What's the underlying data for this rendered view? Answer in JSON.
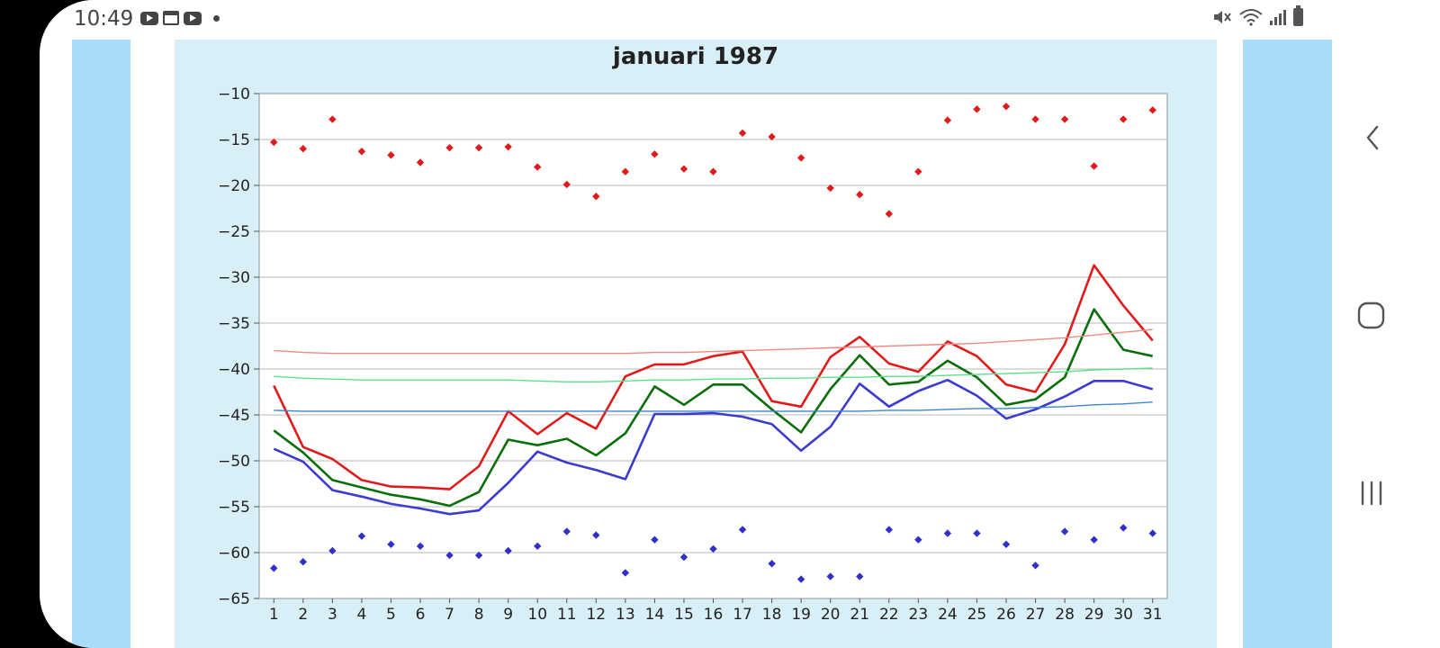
{
  "status_bar": {
    "time": "10:49"
  },
  "chart_data": {
    "type": "line",
    "title": "januari 1987",
    "xlabel": "",
    "ylabel": "",
    "x": [
      1,
      2,
      3,
      4,
      5,
      6,
      7,
      8,
      9,
      10,
      11,
      12,
      13,
      14,
      15,
      16,
      17,
      18,
      19,
      20,
      21,
      22,
      23,
      24,
      25,
      26,
      27,
      28,
      29,
      30,
      31
    ],
    "ylim": [
      -65,
      -10
    ],
    "yticks": [
      -10,
      -15,
      -20,
      -25,
      -30,
      -35,
      -40,
      -45,
      -50,
      -55,
      -60,
      -65
    ],
    "grid": true,
    "series": [
      {
        "kind": "line",
        "color": "#e01b1b",
        "width": 2.6,
        "values": [
          -41.8,
          -48.5,
          -49.8,
          -52.1,
          -52.8,
          -52.9,
          -53.1,
          -50.6,
          -44.6,
          -47.1,
          -44.8,
          -46.5,
          -40.8,
          -39.5,
          -39.5,
          -38.6,
          -38.1,
          -43.5,
          -44.1,
          -38.7,
          -36.5,
          -39.4,
          -40.3,
          -37.0,
          -38.6,
          -41.7,
          -42.5,
          -37.3,
          -28.7,
          -33.1,
          -36.9
        ]
      },
      {
        "kind": "line",
        "color": "#0a6e0a",
        "width": 2.6,
        "values": [
          -46.7,
          -49.1,
          -52.1,
          -52.9,
          -53.7,
          -54.2,
          -54.9,
          -53.4,
          -47.7,
          -48.3,
          -47.6,
          -49.4,
          -47.0,
          -41.9,
          -43.9,
          -41.7,
          -41.7,
          -44.4,
          -46.9,
          -42.2,
          -38.5,
          -41.7,
          -41.4,
          -39.1,
          -40.9,
          -43.9,
          -43.3,
          -40.9,
          -33.5,
          -37.9,
          -38.6
        ]
      },
      {
        "kind": "line",
        "color": "#3b3bd0",
        "width": 2.6,
        "values": [
          -48.7,
          -50.1,
          -53.2,
          -53.9,
          -54.7,
          -55.2,
          -55.8,
          -55.4,
          -52.4,
          -49.0,
          -50.2,
          -51.0,
          -52.0,
          -44.9,
          -44.9,
          -44.8,
          -45.2,
          -46.0,
          -48.9,
          -46.3,
          -41.6,
          -44.1,
          -42.4,
          -41.2,
          -42.9,
          -45.4,
          -44.4,
          -43.0,
          -41.3,
          -41.3,
          -42.2
        ]
      },
      {
        "kind": "line",
        "color": "#f08a85",
        "width": 1.4,
        "values": [
          -38.0,
          -38.2,
          -38.3,
          -38.3,
          -38.3,
          -38.3,
          -38.3,
          -38.3,
          -38.3,
          -38.3,
          -38.3,
          -38.3,
          -38.3,
          -38.2,
          -38.2,
          -38.1,
          -38.0,
          -37.9,
          -37.8,
          -37.7,
          -37.6,
          -37.5,
          -37.4,
          -37.3,
          -37.2,
          -37.0,
          -36.8,
          -36.6,
          -36.3,
          -36.0,
          -35.7
        ]
      },
      {
        "kind": "line",
        "color": "#5ee08a",
        "width": 1.4,
        "values": [
          -40.8,
          -41.0,
          -41.1,
          -41.2,
          -41.2,
          -41.2,
          -41.2,
          -41.2,
          -41.2,
          -41.3,
          -41.4,
          -41.4,
          -41.3,
          -41.2,
          -41.2,
          -41.1,
          -41.1,
          -41.0,
          -41.0,
          -40.9,
          -40.9,
          -40.8,
          -40.8,
          -40.7,
          -40.6,
          -40.5,
          -40.4,
          -40.3,
          -40.1,
          -40.0,
          -39.9
        ]
      },
      {
        "kind": "line",
        "color": "#3c84d4",
        "width": 1.4,
        "values": [
          -44.5,
          -44.6,
          -44.6,
          -44.6,
          -44.6,
          -44.6,
          -44.6,
          -44.6,
          -44.6,
          -44.6,
          -44.6,
          -44.6,
          -44.6,
          -44.6,
          -44.6,
          -44.6,
          -44.6,
          -44.6,
          -44.6,
          -44.6,
          -44.6,
          -44.5,
          -44.5,
          -44.4,
          -44.3,
          -44.3,
          -44.2,
          -44.1,
          -43.9,
          -43.8,
          -43.6
        ]
      },
      {
        "kind": "points",
        "color": "#e01b1b",
        "values": [
          -15.3,
          -16.0,
          -12.8,
          -16.3,
          -16.7,
          -17.5,
          -15.9,
          -15.9,
          -15.8,
          -18.0,
          -19.9,
          -21.2,
          -18.5,
          -16.6,
          -18.2,
          -18.5,
          -14.3,
          -14.7,
          -17.0,
          -20.3,
          -21.0,
          -23.1,
          -18.5,
          -12.9,
          -11.7,
          -11.4,
          -12.8,
          -12.8,
          -17.9,
          -12.8,
          -11.8
        ]
      },
      {
        "kind": "points",
        "color": "#3030c8",
        "values": [
          -61.7,
          -61.0,
          -59.8,
          -58.2,
          -59.1,
          -59.3,
          -60.3,
          -60.3,
          -59.8,
          -59.3,
          -57.7,
          -58.1,
          -62.2,
          -58.6,
          -60.5,
          -59.6,
          -57.5,
          -61.2,
          -62.9,
          -62.6,
          -62.6,
          -57.5,
          -58.6,
          -57.9,
          -57.9,
          -59.1,
          -61.4,
          -57.7,
          -58.6,
          -57.3,
          -57.9
        ]
      }
    ]
  }
}
